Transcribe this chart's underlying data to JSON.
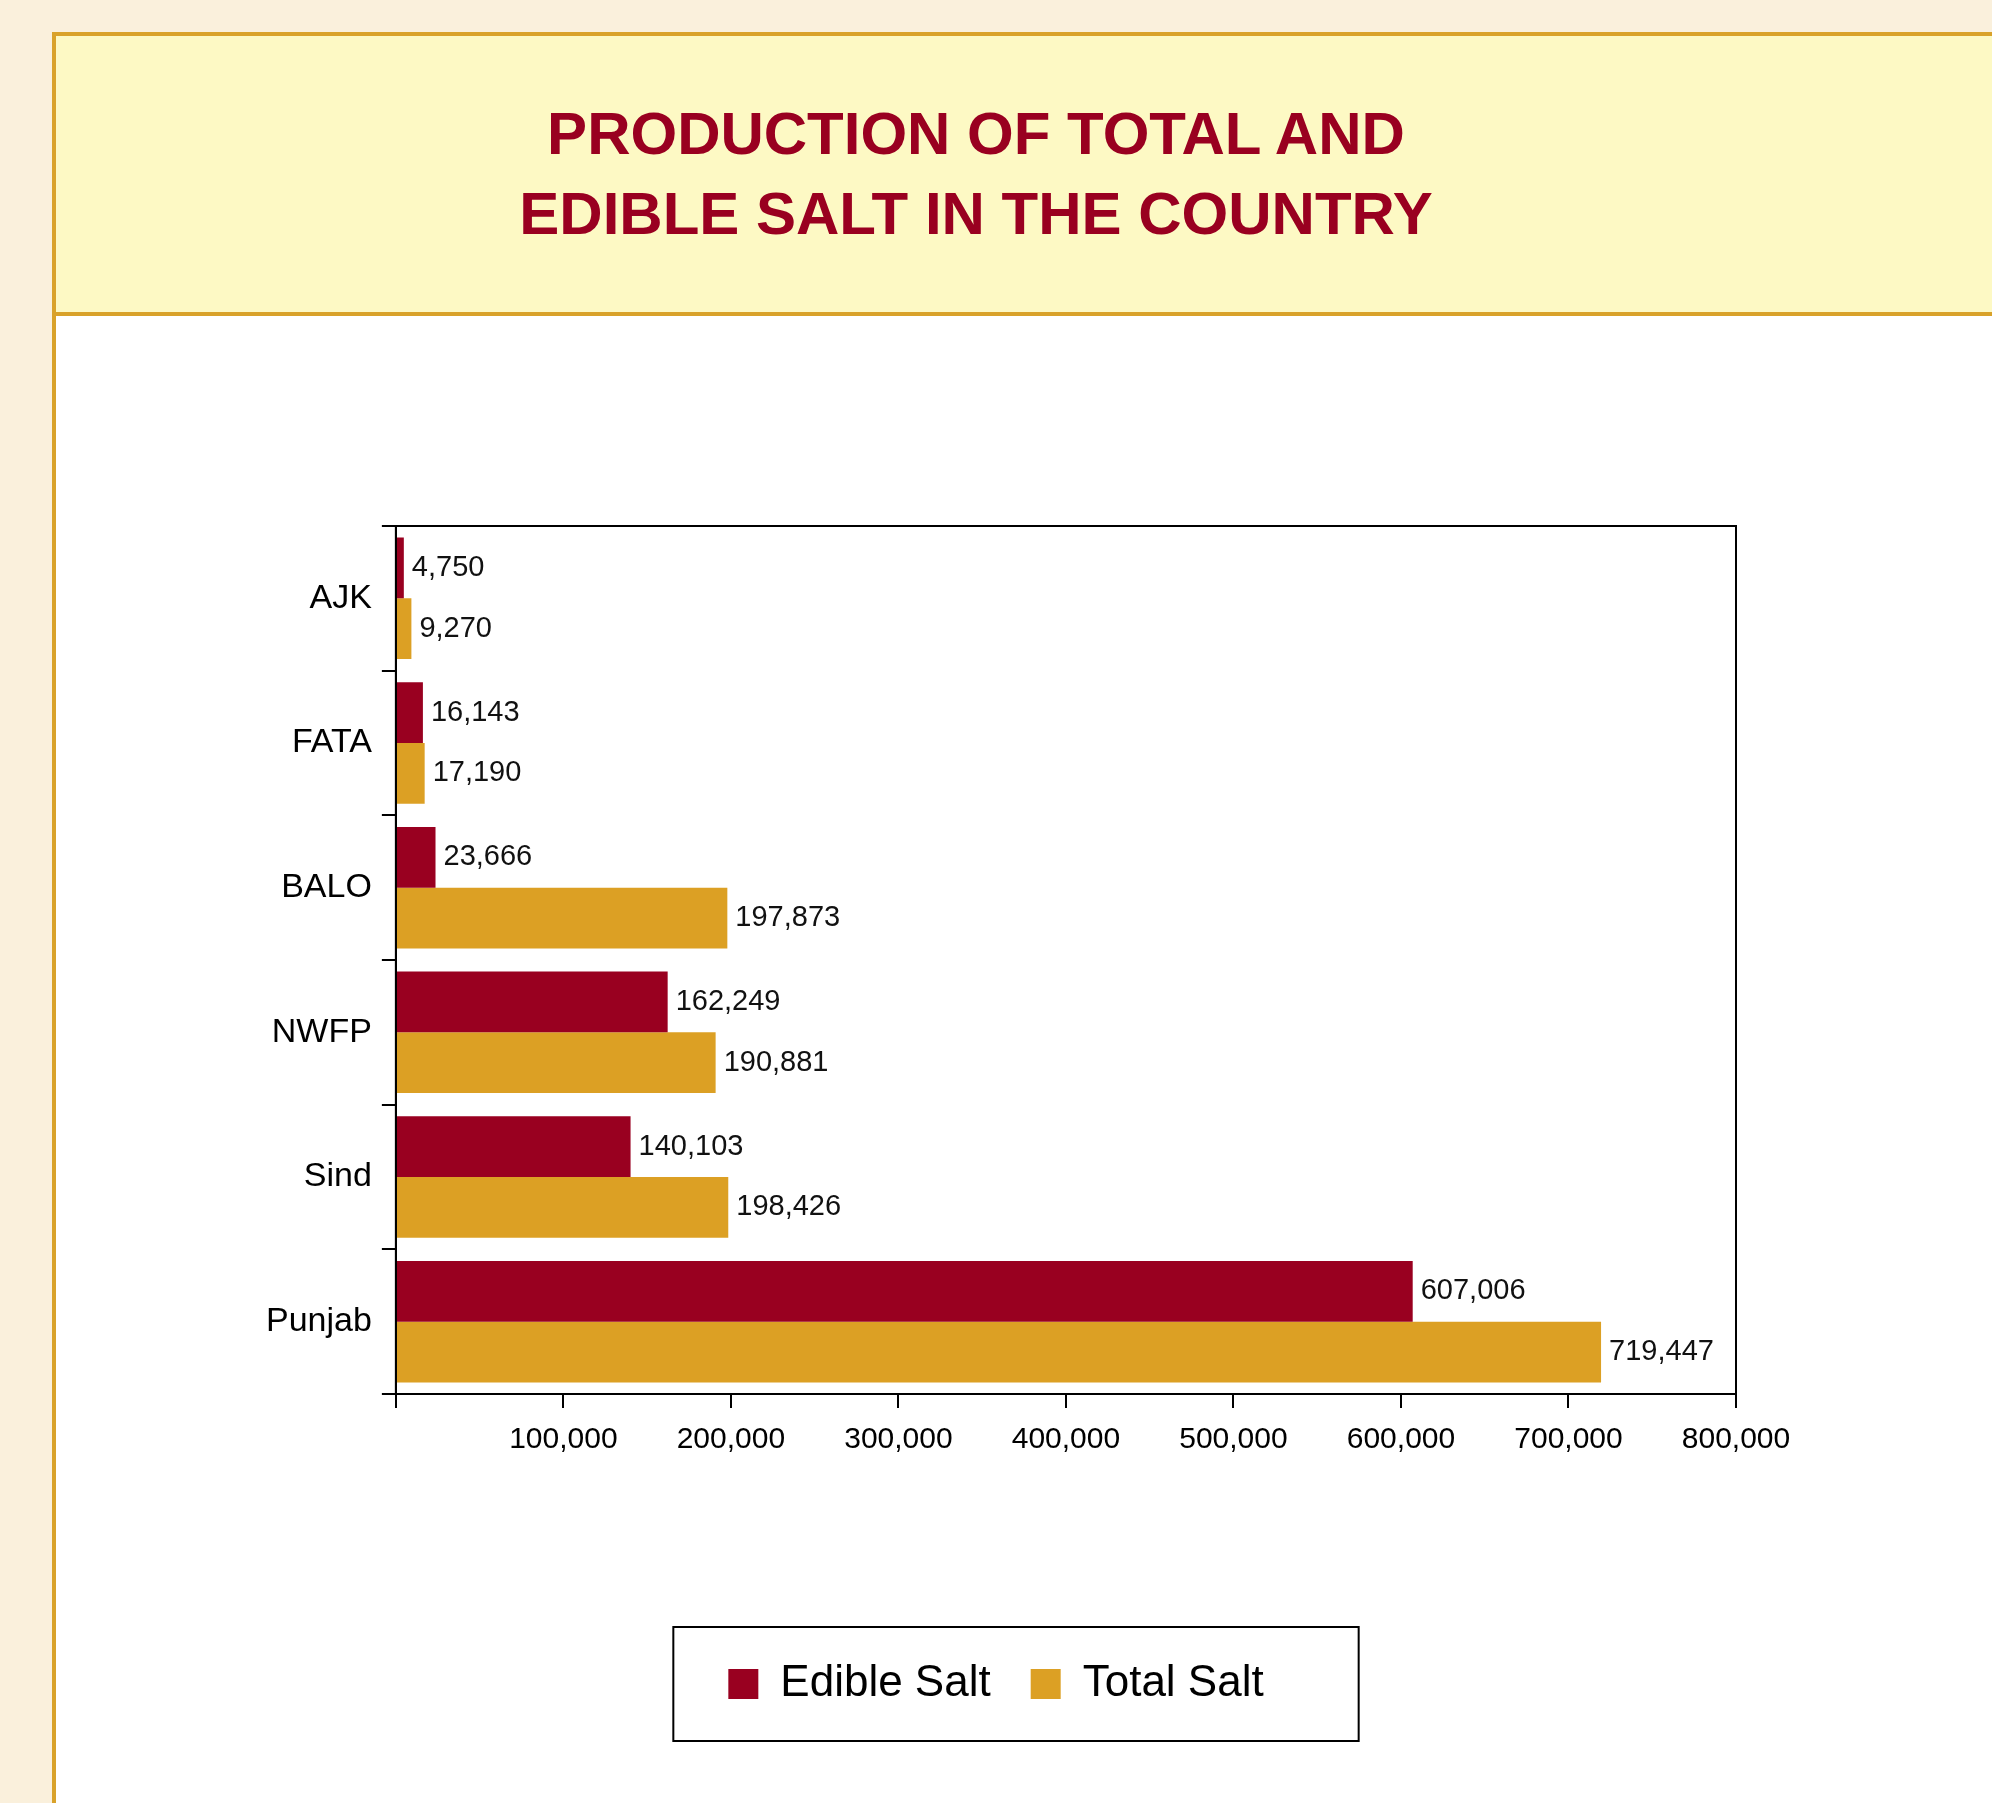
{
  "chart_data": {
    "type": "bar",
    "orientation": "horizontal",
    "title": "PRODUCTION OF TOTAL AND\nEDIBLE SALT IN THE COUNTRY",
    "categories": [
      "AJK",
      "FATA",
      "BALO",
      "NWFP",
      "Sind",
      "Punjab"
    ],
    "series": [
      {
        "name": "Edible Salt",
        "color": "#990020",
        "values": [
          4750,
          16143,
          23666,
          162249,
          140103,
          607006
        ],
        "value_labels": [
          "4,750",
          "16,143",
          "23,666",
          "162,249",
          "140,103",
          "607,006"
        ]
      },
      {
        "name": "Total Salt",
        "color": "#dca024",
        "values": [
          9270,
          17190,
          197873,
          190881,
          198426,
          719447
        ],
        "value_labels": [
          "9,270",
          "17,190",
          "197,873",
          "190,881",
          "198,426",
          "719,447"
        ]
      }
    ],
    "xlim": [
      0,
      800000
    ],
    "xticks": [
      {
        "value": 0,
        "label": null
      },
      {
        "value": 100000,
        "label": "100,000"
      },
      {
        "value": 200000,
        "label": "200,000"
      },
      {
        "value": 300000,
        "label": "300,000"
      },
      {
        "value": 400000,
        "label": "400,000"
      },
      {
        "value": 500000,
        "label": "500,000"
      },
      {
        "value": 600000,
        "label": "600,000"
      },
      {
        "value": 700000,
        "label": "700,000"
      },
      {
        "value": 800000,
        "label": "800,000"
      }
    ],
    "grid": false,
    "legend": "bottom"
  }
}
